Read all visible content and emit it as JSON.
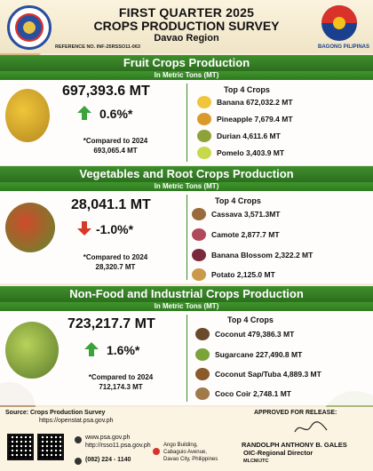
{
  "header": {
    "title_line1": "FIRST QUARTER 2025",
    "title_line2": "CROPS PRODUCTION SURVEY",
    "region": "Davao Region",
    "reference": "REFERENCE NO. INF-25RSSO11-063",
    "seal_text": "PHILIPPINE STATISTICS AUTHORITY",
    "logo_text": "BAGONG PILIPINAS"
  },
  "sections": [
    {
      "title": "Fruit Crops  Production",
      "unit": "In Metric Tons (MT)",
      "total": "697,393.6 MT",
      "change": "0.6%*",
      "direction": "up",
      "compare_label": "*Compared to 2024",
      "compare_value": "693,065.4 MT",
      "top_label": "Top 4 Crops",
      "crops": [
        "Banana 672,032.2 MT",
        "Pineapple 7,679.4 MT",
        "Durian 4,611.6 MT",
        "Pomelo 3,403.9 MT"
      ]
    },
    {
      "title": "Vegetables and Root Crops Production",
      "unit": "In Metric Tons (MT)",
      "total": "28,041.1 MT",
      "change": "-1.0%*",
      "direction": "down",
      "compare_label": "*Compared to 2024",
      "compare_value": "28,320.7 MT",
      "top_label": "Top 4 Crops",
      "crops": [
        "Cassava 3,571.3MT",
        "Camote 2,877.7 MT",
        "Banana Blossom 2,322.2 MT",
        "Potato 2,125.0 MT"
      ]
    },
    {
      "title": "Non-Food and Industrial Crops Production",
      "unit": "In Metric Tons (MT)",
      "total": "723,217.7 MT",
      "change": "1.6%*",
      "direction": "up",
      "compare_label": "*Compared to 2024",
      "compare_value": "712,174.3 MT",
      "top_label": "Top 4 Crops",
      "crops": [
        "Coconut 479,386.3 MT",
        "Sugarcane 227,490.8 MT",
        "Coconut Sap/Tuba 4,889.3 MT",
        "Coco Coir 2,748.1 MT"
      ]
    }
  ],
  "footer": {
    "source_label": "Source: Crops Production Survey",
    "source_url": "https://openstat.psa.gov.ph",
    "web1": "www.psa.gov.ph",
    "web2": "http://rsso11.psa.gov.ph",
    "phone": "(082) 224 - 1140",
    "address1": "Ango Building,",
    "address2": "Cabaguio Avenue,",
    "address3": "Davao City, Philippines",
    "approved": "APPROVED FOR RELEASE:",
    "signatory": "RANDOLPH ANTHONY B. GALES",
    "position": "OIC-Regional Director",
    "initials": "MLCM/JTC"
  },
  "colors": {
    "banner_green": "#2d6e1f",
    "up_arrow": "#3aa33a",
    "down_arrow": "#d63a2a",
    "background": "#f4ecd8"
  }
}
